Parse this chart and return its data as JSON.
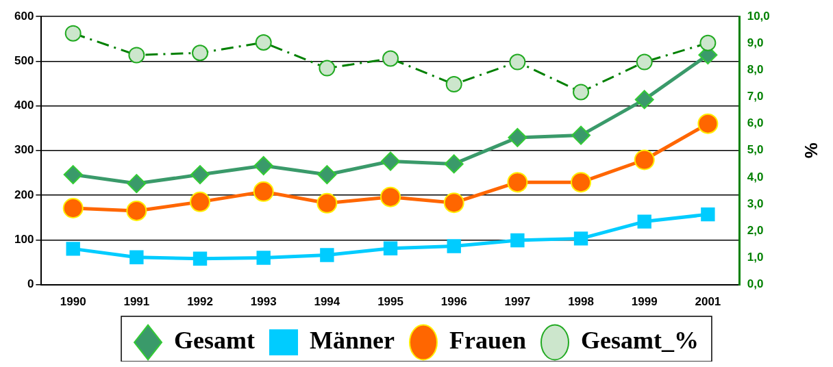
{
  "chart_data": {
    "type": "line",
    "y2label": "%",
    "categories": [
      "1990",
      "1991",
      "1992",
      "1993",
      "1994",
      "1995",
      "1996",
      "1997",
      "1998",
      "1999",
      "2001"
    ],
    "series": [
      {
        "name": "Gesamt",
        "color": "#3a9a6a",
        "marker": "diamond",
        "line_style": "solid",
        "values": [
          246,
          226,
          246,
          266,
          246,
          276,
          270,
          329,
          334,
          414,
          514
        ]
      },
      {
        "name": "Männer",
        "color": "#00ccff",
        "marker": "square",
        "line_style": "solid",
        "values": [
          80,
          61,
          58,
          60,
          66,
          81,
          86,
          99,
          103,
          141,
          157
        ]
      },
      {
        "name": "Frauen",
        "color": "#ff6600",
        "marker": "circle",
        "line_style": "solid",
        "values": [
          171,
          165,
          185,
          208,
          182,
          196,
          183,
          229,
          229,
          279,
          360
        ]
      },
      {
        "name": "Gesamt_%",
        "color": "#008000",
        "marker": "circle",
        "line_style": "dashed",
        "axis": "y2",
        "values": [
          9.37,
          8.56,
          8.64,
          9.03,
          8.07,
          8.43,
          7.47,
          8.3,
          7.18,
          8.3,
          9.01
        ]
      }
    ],
    "ylim": [
      0,
      600
    ],
    "yticks": [
      0,
      100,
      200,
      300,
      400,
      500,
      600
    ],
    "y2lim": [
      0,
      10
    ],
    "y2ticks": [
      {
        "value": 0,
        "label": "0,0"
      },
      {
        "value": 1,
        "label": "1,0"
      },
      {
        "value": 2,
        "label": "2,0"
      },
      {
        "value": 3,
        "label": "3,0"
      },
      {
        "value": 4,
        "label": "4,0"
      },
      {
        "value": 5,
        "label": "5,0"
      },
      {
        "value": 6,
        "label": "6,0"
      },
      {
        "value": 7,
        "label": "7,0"
      },
      {
        "value": 8,
        "label": "8,0"
      },
      {
        "value": 9,
        "label": "9,0"
      },
      {
        "value": 10,
        "label": "10,0"
      }
    ],
    "grid": "y",
    "legend": "bottom"
  }
}
